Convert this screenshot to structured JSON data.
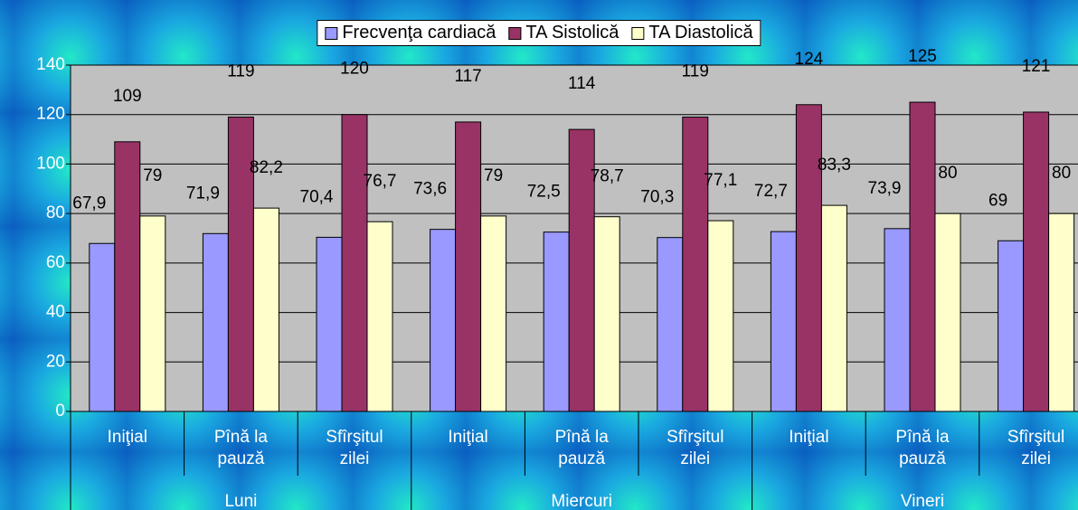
{
  "chart_data": {
    "type": "bar",
    "categories": [
      "Iniţial",
      "Pînă la pauză",
      "Sfîrşitul zilei",
      "Iniţial",
      "Pînă la pauză",
      "Sfîrşitul zilei",
      "Iniţial",
      "Pînă la pauză",
      "Sfîrşitul zilei"
    ],
    "groups": [
      "Luni",
      "Miercuri",
      "Vineri"
    ],
    "series": [
      {
        "name": "Frecvenţa cardiacă",
        "color": "#9999ff",
        "values": [
          67.9,
          71.9,
          70.4,
          73.6,
          72.5,
          70.3,
          72.7,
          73.9,
          69
        ],
        "value_labels": [
          "67,9",
          "71,9",
          "70,4",
          "73,6",
          "72,5",
          "70,3",
          "72,7",
          "73,9",
          "69"
        ]
      },
      {
        "name": "TA Sistolică",
        "color": "#993366",
        "values": [
          109,
          119,
          120,
          117,
          114,
          119,
          124,
          125,
          121
        ],
        "value_labels": [
          "109",
          "119",
          "120",
          "117",
          "114",
          "119",
          "124",
          "125",
          "121"
        ]
      },
      {
        "name": "TA Diastolică",
        "color": "#ffffcc",
        "values": [
          79,
          82.2,
          76.7,
          79,
          78.7,
          77.1,
          83.3,
          80,
          80
        ],
        "value_labels": [
          "79",
          "82,2",
          "76,7",
          "79",
          "78,7",
          "77,1",
          "83,3",
          "80",
          "80"
        ]
      }
    ],
    "ylim": [
      0,
      140
    ],
    "yticks": [
      0,
      20,
      40,
      60,
      80,
      100,
      120,
      140
    ],
    "grid": true,
    "legend": "top"
  }
}
